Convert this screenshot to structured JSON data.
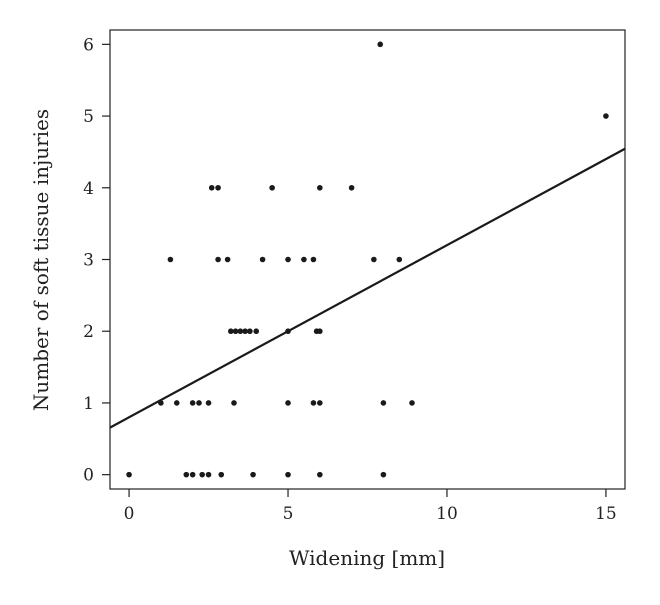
{
  "chart_data": {
    "type": "scatter",
    "title": "",
    "xlabel": "Widening [mm]",
    "ylabel": "Number of soft tissue injuries",
    "xlim": [
      -0.6,
      15.6
    ],
    "ylim": [
      -0.2,
      6.2
    ],
    "x_ticks": [
      0,
      5,
      10,
      15
    ],
    "y_ticks": [
      0,
      1,
      2,
      3,
      4,
      5,
      6
    ],
    "grid": false,
    "legend": "none",
    "colors": {
      "points": "#1a1a1a",
      "line": "#1a1a1a",
      "axis": "#222222"
    },
    "points": [
      {
        "x": 0,
        "y": 0
      },
      {
        "x": 1.8,
        "y": 0
      },
      {
        "x": 2.0,
        "y": 0
      },
      {
        "x": 2.3,
        "y": 0
      },
      {
        "x": 2.5,
        "y": 0
      },
      {
        "x": 2.9,
        "y": 0
      },
      {
        "x": 3.9,
        "y": 0
      },
      {
        "x": 5.0,
        "y": 0
      },
      {
        "x": 6.0,
        "y": 0
      },
      {
        "x": 8.0,
        "y": 0
      },
      {
        "x": 1.0,
        "y": 1
      },
      {
        "x": 1.5,
        "y": 1
      },
      {
        "x": 2.0,
        "y": 1
      },
      {
        "x": 2.2,
        "y": 1
      },
      {
        "x": 2.5,
        "y": 1
      },
      {
        "x": 3.3,
        "y": 1
      },
      {
        "x": 5.0,
        "y": 1
      },
      {
        "x": 5.8,
        "y": 1
      },
      {
        "x": 6.0,
        "y": 1
      },
      {
        "x": 8.0,
        "y": 1
      },
      {
        "x": 8.9,
        "y": 1
      },
      {
        "x": 3.2,
        "y": 2
      },
      {
        "x": 3.35,
        "y": 2
      },
      {
        "x": 3.5,
        "y": 2
      },
      {
        "x": 3.65,
        "y": 2
      },
      {
        "x": 3.8,
        "y": 2
      },
      {
        "x": 4.0,
        "y": 2
      },
      {
        "x": 5.0,
        "y": 2
      },
      {
        "x": 5.9,
        "y": 2
      },
      {
        "x": 6.0,
        "y": 2
      },
      {
        "x": 1.3,
        "y": 3
      },
      {
        "x": 2.8,
        "y": 3
      },
      {
        "x": 3.1,
        "y": 3
      },
      {
        "x": 4.2,
        "y": 3
      },
      {
        "x": 5.0,
        "y": 3
      },
      {
        "x": 5.5,
        "y": 3
      },
      {
        "x": 5.8,
        "y": 3
      },
      {
        "x": 7.7,
        "y": 3
      },
      {
        "x": 8.5,
        "y": 3
      },
      {
        "x": 2.6,
        "y": 4
      },
      {
        "x": 2.8,
        "y": 4
      },
      {
        "x": 4.5,
        "y": 4
      },
      {
        "x": 6.0,
        "y": 4
      },
      {
        "x": 7.0,
        "y": 4
      },
      {
        "x": 15.0,
        "y": 5
      },
      {
        "x": 7.9,
        "y": 6
      }
    ],
    "regression_line": {
      "intercept": 0.8,
      "slope": 0.24
    }
  }
}
